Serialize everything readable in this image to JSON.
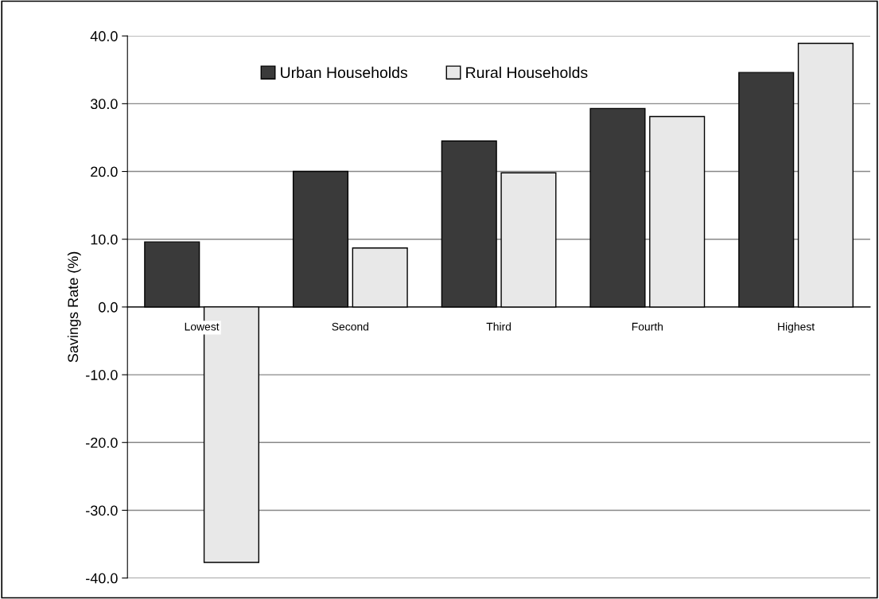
{
  "chart_data": {
    "type": "bar",
    "ylabel": "Savings Rate (%)",
    "categories": [
      "Lowest",
      "Second",
      "Third",
      "Fourth",
      "Highest"
    ],
    "series": [
      {
        "name": "Urban Households",
        "color": "#3a3a3a",
        "values": [
          9.6,
          20.0,
          24.5,
          29.3,
          34.6
        ]
      },
      {
        "name": "Rural Households",
        "color": "#e8e8e8",
        "values": [
          -37.7,
          8.7,
          19.8,
          28.1,
          38.9
        ]
      }
    ],
    "ylim": [
      -40,
      40
    ],
    "yticks": [
      {
        "value": -40,
        "label": "-40.0"
      },
      {
        "value": -30,
        "label": "-30.0"
      },
      {
        "value": -20,
        "label": "-20.0"
      },
      {
        "value": -10,
        "label": "-10.0"
      },
      {
        "value": 0,
        "label": "0.0"
      },
      {
        "value": 10,
        "label": "10.0"
      },
      {
        "value": 20,
        "label": "20.0"
      },
      {
        "value": 30,
        "label": "30.0"
      },
      {
        "value": 40,
        "label": "40.0"
      }
    ],
    "grid": "y",
    "legend": "top"
  }
}
